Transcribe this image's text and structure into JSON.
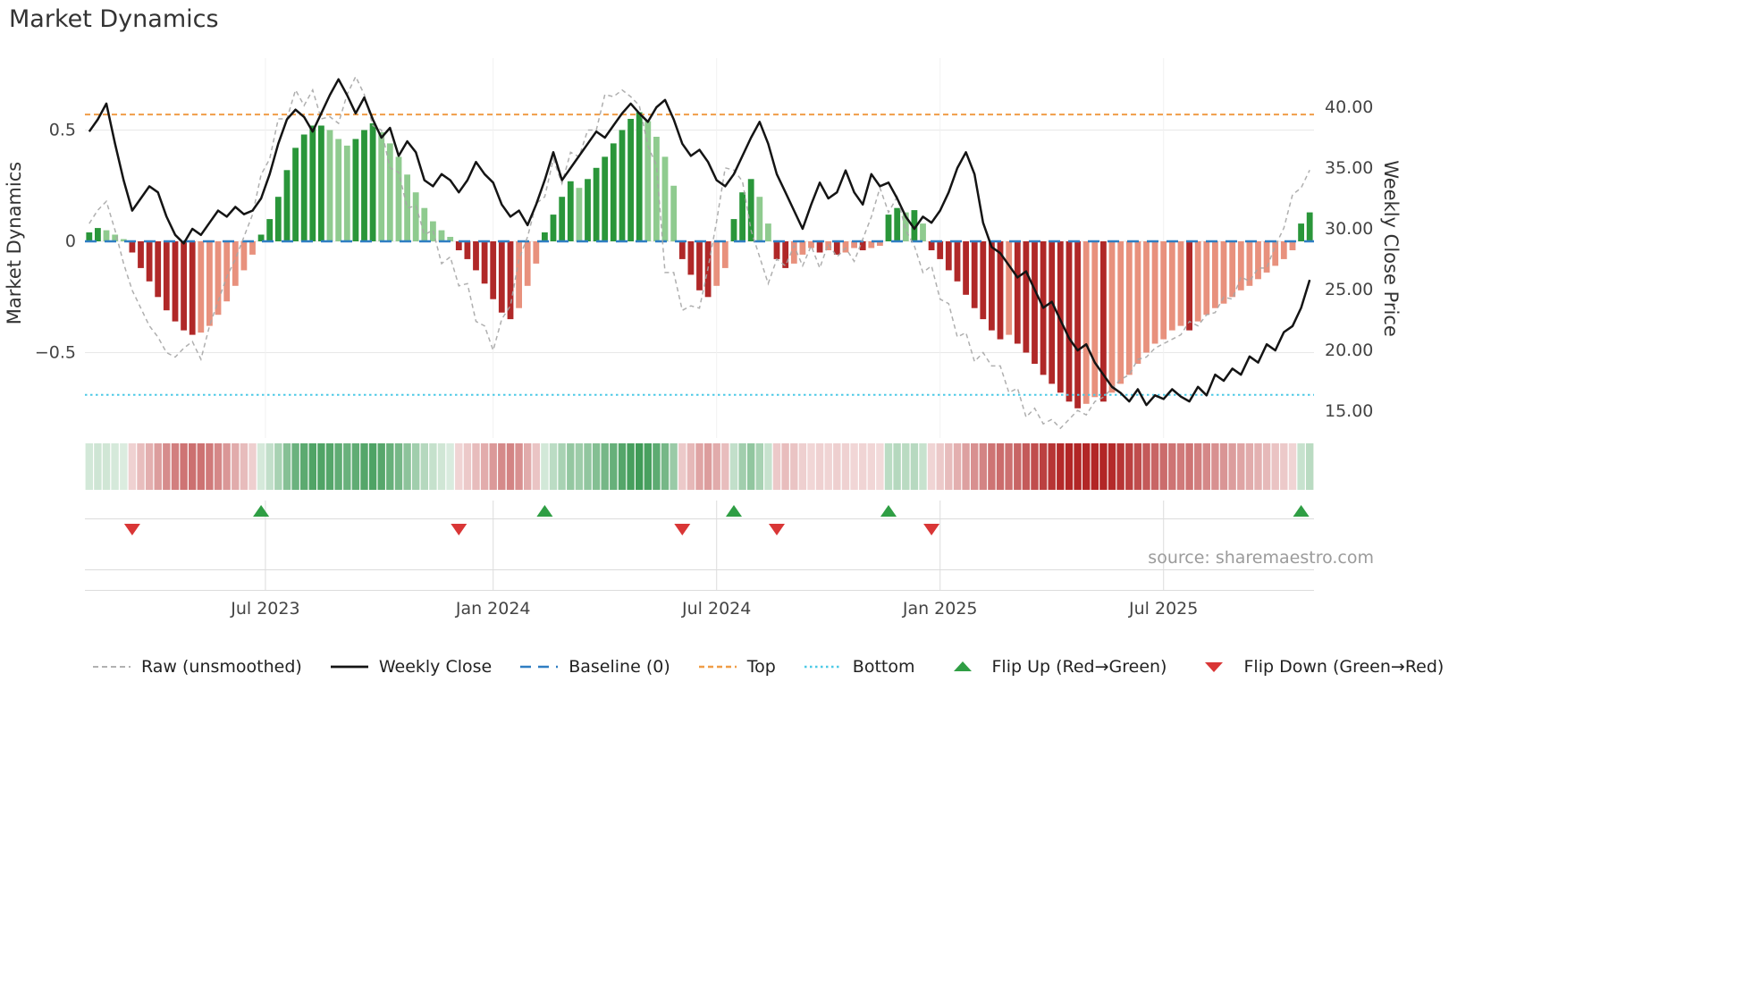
{
  "title": "Market Dynamics",
  "source": "source: sharemaestro.com",
  "axes": {
    "left_label": "Market Dynamics",
    "right_label": "Weekly Close Price",
    "left_ticks": [
      {
        "v": 0.5,
        "label": "0.5"
      },
      {
        "v": 0,
        "label": "0"
      },
      {
        "v": -0.5,
        "label": "−0.5"
      }
    ],
    "right_ticks": [
      {
        "v": 40,
        "label": "40.00"
      },
      {
        "v": 35,
        "label": "35.00"
      },
      {
        "v": 30,
        "label": "30.00"
      },
      {
        "v": 25,
        "label": "25.00"
      },
      {
        "v": 20,
        "label": "20.00"
      },
      {
        "v": 15,
        "label": "15.00"
      }
    ],
    "x_ticks": [
      {
        "pos": 20.5,
        "label": "Jul 2023"
      },
      {
        "pos": 47,
        "label": "Jan 2024"
      },
      {
        "pos": 73,
        "label": "Jul 2024"
      },
      {
        "pos": 99,
        "label": "Jan 2025"
      },
      {
        "pos": 125,
        "label": "Jul 2025"
      }
    ]
  },
  "legend": {
    "items": [
      {
        "label": "Raw (unsmoothed)",
        "sample": {
          "kind": "line",
          "dash": "6 4",
          "color": "#a6a6a6",
          "width": 1.8
        }
      },
      {
        "label": "Weekly Close",
        "sample": {
          "kind": "line",
          "dash": "",
          "color": "#141414",
          "width": 2.8
        }
      },
      {
        "label": "Baseline (0)",
        "sample": {
          "kind": "line",
          "dash": "12 8",
          "color": "#2f7ec2",
          "width": 2.6
        }
      },
      {
        "label": "Top",
        "sample": {
          "kind": "line",
          "dash": "6 4",
          "color": "#f09d47",
          "width": 2.4
        }
      },
      {
        "label": "Bottom",
        "sample": {
          "kind": "line",
          "dash": "2.5 3.5",
          "color": "#4cc9e6",
          "width": 2.4
        }
      },
      {
        "label": "Flip Up (Red→Green)",
        "sample": {
          "kind": "triangle-up",
          "color": "#2f9e44"
        }
      },
      {
        "label": "Flip Down (Green→Red)",
        "sample": {
          "kind": "triangle-down",
          "color": "#d93636"
        }
      }
    ]
  },
  "colors": {
    "bar_pos_strong": "#2a963a",
    "bar_pos_weak": "#8fcb8f",
    "bar_neg_strong": "#b02828",
    "bar_neg_weak": "#e8917d",
    "heat_pos": "#1f8a3b",
    "heat_neg": "#b22626",
    "close_line": "#141414",
    "raw_line": "#a6a6a6",
    "baseline": "#2f7ec2",
    "top_line": "#f09d47",
    "bottom_line": "#4cc9e6",
    "flip_up": "#2f9e44",
    "flip_down": "#d93636",
    "grid": "#e8e8e8",
    "subgrid": "#dcdcdc",
    "tick_text": "#444444"
  },
  "chart_data": {
    "type": "combo",
    "description": "Weekly market-dynamics oscillator bars with raw (unsmoothed) overlay on left axis and weekly close price on right axis; heatmap strip and flip markers below.",
    "n_weeks": 143,
    "baseline": 0,
    "top_threshold": 0.57,
    "bottom_threshold": -0.69,
    "left_axis_range": [
      -0.88,
      0.82
    ],
    "right_axis_range": [
      12.8,
      44.0
    ],
    "flip_up_weeks": [
      20,
      53,
      75,
      93,
      141
    ],
    "flip_down_weeks": [
      5,
      43,
      69,
      80,
      98
    ],
    "heatmap": {
      "note": "color strip mirrors oscillator bar values",
      "values_ref": "series.0.values"
    },
    "series": [
      {
        "name": "Market Dynamics",
        "type": "bar",
        "axis": "left",
        "values": [
          0.04,
          0.06,
          0.05,
          0.03,
          0.01,
          -0.05,
          -0.12,
          -0.18,
          -0.25,
          -0.31,
          -0.36,
          -0.4,
          -0.42,
          -0.41,
          -0.38,
          -0.33,
          -0.27,
          -0.2,
          -0.13,
          -0.06,
          0.03,
          0.1,
          0.2,
          0.32,
          0.42,
          0.48,
          0.52,
          0.52,
          0.5,
          0.46,
          0.43,
          0.46,
          0.5,
          0.53,
          0.49,
          0.44,
          0.38,
          0.3,
          0.22,
          0.15,
          0.09,
          0.05,
          0.02,
          -0.04,
          -0.08,
          -0.13,
          -0.19,
          -0.26,
          -0.32,
          -0.35,
          -0.3,
          -0.2,
          -0.1,
          0.04,
          0.12,
          0.2,
          0.27,
          0.24,
          0.28,
          0.33,
          0.38,
          0.44,
          0.5,
          0.55,
          0.58,
          0.54,
          0.47,
          0.38,
          0.25,
          -0.08,
          -0.15,
          -0.22,
          -0.25,
          -0.2,
          -0.12,
          0.1,
          0.22,
          0.28,
          0.2,
          0.08,
          -0.08,
          -0.12,
          -0.1,
          -0.06,
          -0.03,
          -0.05,
          -0.04,
          -0.06,
          -0.05,
          -0.03,
          -0.04,
          -0.03,
          -0.02,
          0.12,
          0.15,
          0.13,
          0.14,
          0.08,
          -0.04,
          -0.08,
          -0.13,
          -0.18,
          -0.24,
          -0.3,
          -0.35,
          -0.4,
          -0.44,
          -0.42,
          -0.46,
          -0.5,
          -0.55,
          -0.6,
          -0.64,
          -0.68,
          -0.72,
          -0.75,
          -0.73,
          -0.7,
          -0.72,
          -0.68,
          -0.64,
          -0.6,
          -0.55,
          -0.5,
          -0.46,
          -0.44,
          -0.4,
          -0.38,
          -0.4,
          -0.36,
          -0.33,
          -0.3,
          -0.28,
          -0.25,
          -0.22,
          -0.2,
          -0.17,
          -0.14,
          -0.11,
          -0.08,
          -0.04,
          0.08,
          0.13
        ]
      },
      {
        "name": "Raw (unsmoothed)",
        "type": "line",
        "style": "dashed",
        "axis": "left",
        "values": [
          0.08,
          0.14,
          0.18,
          0.05,
          -0.1,
          -0.22,
          -0.3,
          -0.38,
          -0.43,
          -0.5,
          -0.52,
          -0.48,
          -0.45,
          -0.53,
          -0.38,
          -0.27,
          -0.16,
          -0.08,
          0.02,
          0.12,
          0.3,
          0.37,
          0.55,
          0.55,
          0.68,
          0.61,
          0.68,
          0.55,
          0.56,
          0.53,
          0.66,
          0.74,
          0.66,
          0.52,
          0.5,
          0.33,
          0.31,
          0.15,
          0.16,
          0.03,
          0.05,
          -0.1,
          -0.07,
          -0.2,
          -0.19,
          -0.36,
          -0.38,
          -0.49,
          -0.35,
          -0.29,
          -0.08,
          0.02,
          0.17,
          0.2,
          0.37,
          0.26,
          0.4,
          0.38,
          0.5,
          0.5,
          0.66,
          0.65,
          0.68,
          0.65,
          0.61,
          0.43,
          0.34,
          -0.14,
          -0.14,
          -0.31,
          -0.29,
          -0.3,
          -0.12,
          0.09,
          0.33,
          0.32,
          0.27,
          0.05,
          -0.07,
          -0.19,
          -0.08,
          -0.11,
          -0.02,
          -0.11,
          -0.02,
          -0.12,
          -0.01,
          -0.07,
          -0.03,
          -0.09,
          0.01,
          0.11,
          0.24,
          0.13,
          0.2,
          0.05,
          -0.02,
          -0.14,
          -0.11,
          -0.26,
          -0.28,
          -0.43,
          -0.41,
          -0.54,
          -0.5,
          -0.56,
          -0.56,
          -0.68,
          -0.66,
          -0.79,
          -0.75,
          -0.82,
          -0.8,
          -0.84,
          -0.8,
          -0.76,
          -0.78,
          -0.72,
          -0.7,
          -0.66,
          -0.62,
          -0.6,
          -0.53,
          -0.52,
          -0.48,
          -0.46,
          -0.44,
          -0.42,
          -0.36,
          -0.38,
          -0.33,
          -0.32,
          -0.25,
          -0.26,
          -0.16,
          -0.18,
          -0.12,
          -0.12,
          -0.02,
          0.06,
          0.21,
          0.24,
          0.32
        ]
      },
      {
        "name": "Weekly Close",
        "type": "line",
        "axis": "right",
        "values": [
          38.0,
          39.0,
          40.3,
          37.0,
          34.0,
          31.5,
          32.5,
          33.5,
          33.0,
          31.0,
          29.5,
          28.8,
          30.0,
          29.5,
          30.5,
          31.5,
          31.0,
          31.8,
          31.2,
          31.5,
          32.5,
          34.5,
          37.0,
          39.0,
          39.8,
          39.2,
          38.0,
          39.5,
          41.0,
          42.3,
          41.0,
          39.5,
          40.8,
          39.0,
          37.5,
          38.3,
          36.0,
          37.2,
          36.3,
          34.0,
          33.5,
          34.5,
          34.0,
          33.0,
          34.0,
          35.5,
          34.5,
          33.8,
          32.0,
          31.0,
          31.5,
          30.3,
          32.0,
          34.0,
          36.3,
          34.0,
          35.0,
          36.0,
          37.0,
          38.0,
          37.5,
          38.5,
          39.5,
          40.3,
          39.5,
          38.8,
          40.0,
          40.6,
          39.0,
          37.0,
          36.0,
          36.5,
          35.5,
          34.0,
          33.5,
          34.5,
          36.0,
          37.5,
          38.8,
          37.0,
          34.5,
          33.0,
          31.5,
          30.0,
          32.0,
          33.8,
          32.5,
          33.0,
          34.8,
          33.0,
          32.0,
          34.5,
          33.5,
          33.8,
          32.5,
          31.0,
          30.0,
          31.0,
          30.5,
          31.5,
          33.0,
          35.0,
          36.3,
          34.5,
          30.5,
          28.5,
          28.0,
          27.0,
          26.0,
          26.5,
          25.0,
          23.5,
          24.0,
          22.5,
          21.0,
          20.0,
          20.5,
          19.0,
          18.0,
          17.0,
          16.5,
          15.8,
          16.8,
          15.5,
          16.3,
          16.0,
          16.8,
          16.2,
          15.8,
          17.0,
          16.3,
          18.0,
          17.5,
          18.5,
          18.0,
          19.5,
          19.0,
          20.5,
          20.0,
          21.5,
          22.0,
          23.5,
          25.8
        ]
      }
    ]
  }
}
